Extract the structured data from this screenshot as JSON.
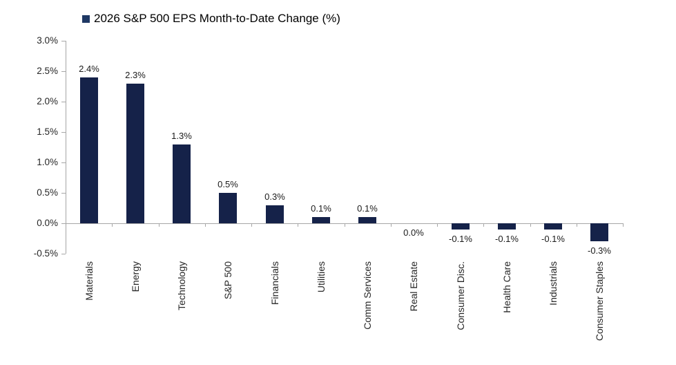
{
  "legend": {
    "label": "2026 S&P 500 EPS Month-to-Date Change (%)",
    "marker_color": "#1f3864"
  },
  "chart_data": {
    "type": "bar",
    "title": "2026 S&P 500 EPS Month-to-Date Change (%)",
    "categories": [
      "Materials",
      "Energy",
      "Technology",
      "S&P 500",
      "Financials",
      "Utilities",
      "Comm Services",
      "Real Estate",
      "Consumer Disc.",
      "Health Care",
      "Industrials",
      "Consumer Staples"
    ],
    "values": [
      2.4,
      2.3,
      1.3,
      0.5,
      0.3,
      0.1,
      0.1,
      0.0,
      -0.1,
      -0.1,
      -0.1,
      -0.3
    ],
    "value_labels": [
      "2.4%",
      "2.3%",
      "1.3%",
      "0.5%",
      "0.3%",
      "0.1%",
      "0.1%",
      "0.0%",
      "-0.1%",
      "-0.1%",
      "-0.1%",
      "-0.3%"
    ],
    "ytick_labels": [
      "3.0%",
      "2.5%",
      "2.0%",
      "1.5%",
      "1.0%",
      "0.5%",
      "0.0%",
      "-0.5%"
    ],
    "ytick_values": [
      3.0,
      2.5,
      2.0,
      1.5,
      1.0,
      0.5,
      0.0,
      -0.5
    ],
    "ylim": [
      -0.5,
      3.0
    ],
    "xlabel": "",
    "ylabel": "",
    "bar_color": "#152249",
    "axis_color": "#a6a6a6",
    "legend_position": "top",
    "grid": false
  }
}
